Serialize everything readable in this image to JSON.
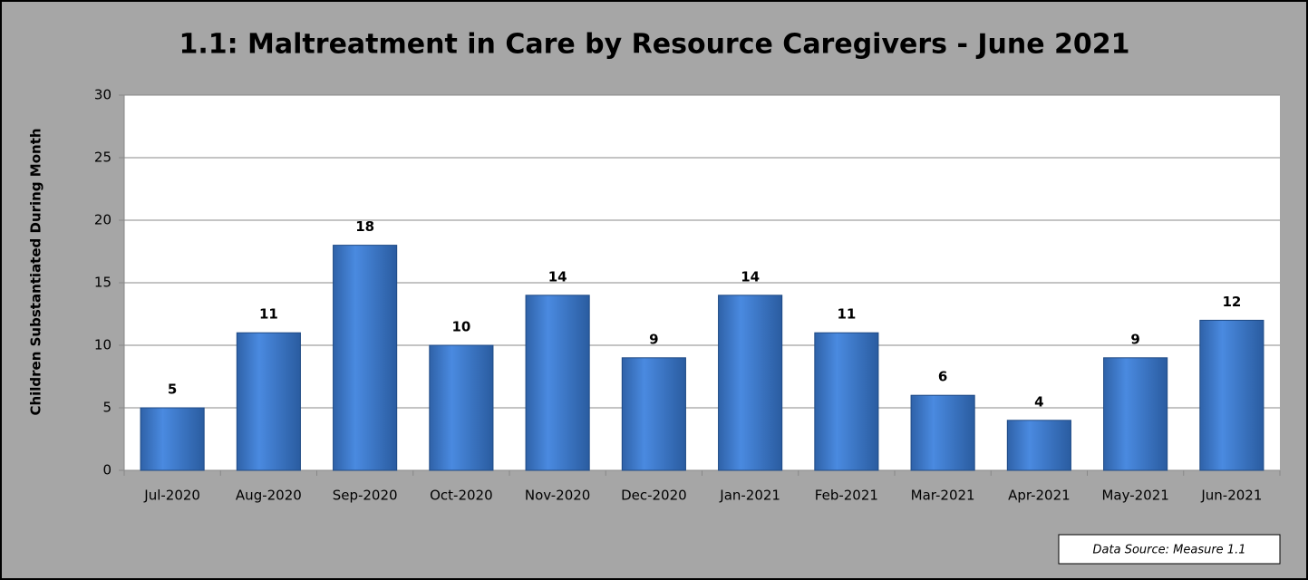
{
  "chart_data": {
    "type": "bar",
    "title": "1.1: Maltreatment in Care by Resource Caregivers - June 2021",
    "y_label": "Children Substantiated During Month",
    "annotation": "Data Source: Measure 1.1",
    "categories": [
      "Jul-2020",
      "Aug-2020",
      "Sep-2020",
      "Oct-2020",
      "Nov-2020",
      "Dec-2020",
      "Jan-2021",
      "Feb-2021",
      "Mar-2021",
      "Apr-2021",
      "May-2021",
      "Jun-2021"
    ],
    "values": [
      5,
      11,
      18,
      10,
      14,
      9,
      14,
      11,
      6,
      4,
      9,
      12
    ],
    "color": "#3f7fd0",
    "ylim": [
      0,
      30
    ],
    "yticks": [
      0,
      5,
      10,
      15,
      20,
      25,
      30
    ],
    "grid": true
  }
}
